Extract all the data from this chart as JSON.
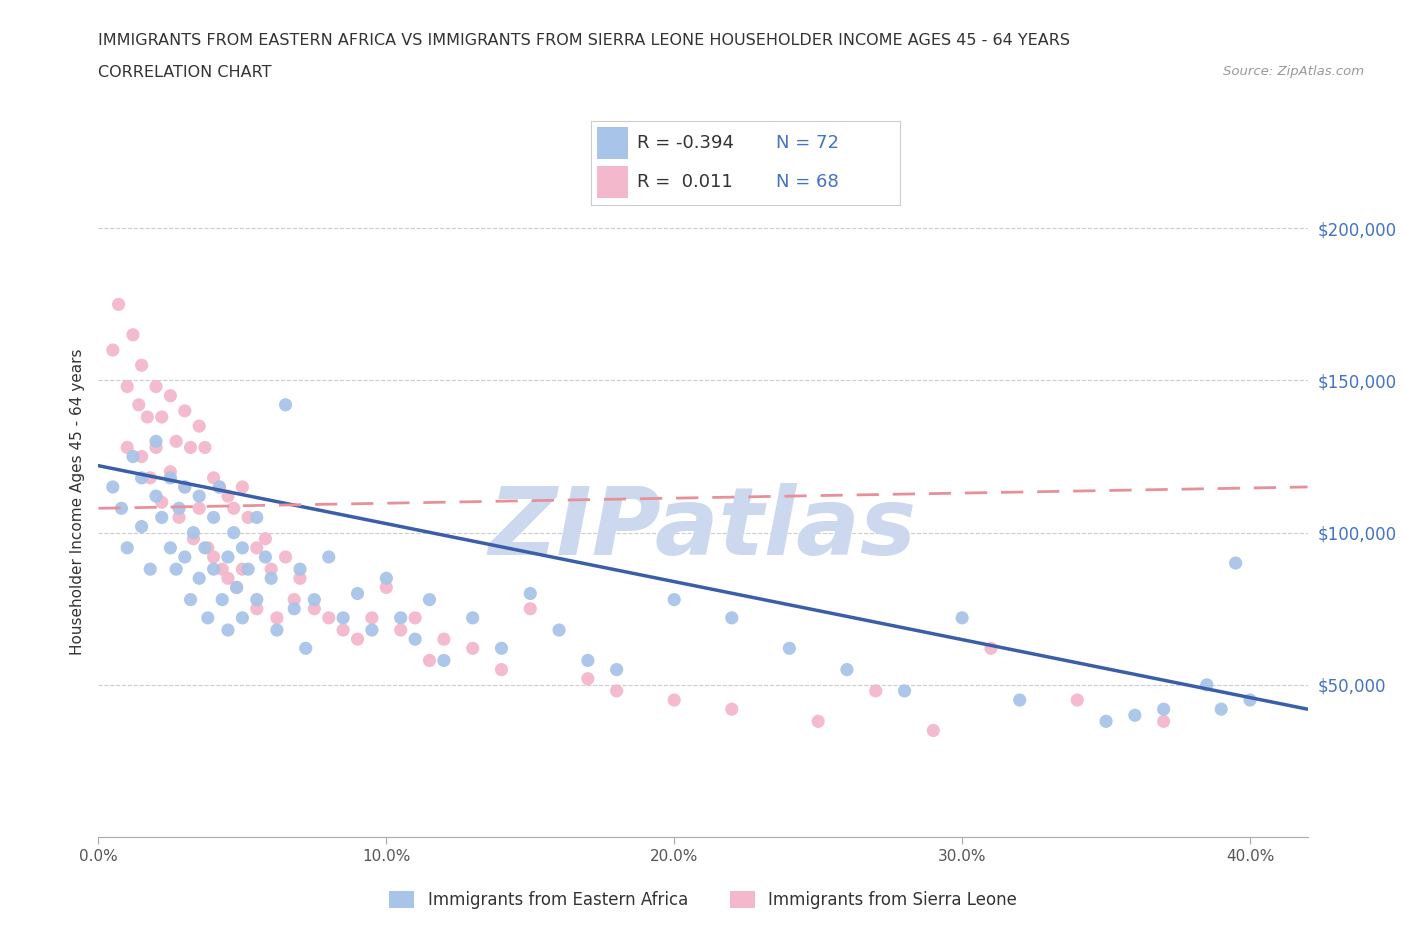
{
  "title_line1": "IMMIGRANTS FROM EASTERN AFRICA VS IMMIGRANTS FROM SIERRA LEONE HOUSEHOLDER INCOME AGES 45 - 64 YEARS",
  "title_line2": "CORRELATION CHART",
  "source_text": "Source: ZipAtlas.com",
  "ylabel": "Householder Income Ages 45 - 64 years",
  "xlim": [
    0.0,
    0.42
  ],
  "ylim": [
    0,
    220000
  ],
  "yticks": [
    0,
    50000,
    100000,
    150000,
    200000
  ],
  "ytick_labels": [
    "",
    "$50,000",
    "$100,000",
    "$150,000",
    "$200,000"
  ],
  "xticks": [
    0.0,
    0.1,
    0.2,
    0.3,
    0.4
  ],
  "xtick_labels": [
    "0.0%",
    "10.0%",
    "20.0%",
    "30.0%",
    "40.0%"
  ],
  "blue_R": -0.394,
  "blue_N": 72,
  "pink_R": 0.011,
  "pink_N": 68,
  "blue_scatter_color": "#a8c4e8",
  "pink_scatter_color": "#f4b8cc",
  "blue_line_color": "#3a5fa8",
  "pink_line_color": "#e8909a",
  "watermark": "ZIPatlas",
  "watermark_color": "#ccd8ee",
  "legend_label_blue": "Immigrants from Eastern Africa",
  "legend_label_pink": "Immigrants from Sierra Leone",
  "blue_scatter_x": [
    0.005,
    0.008,
    0.01,
    0.012,
    0.015,
    0.015,
    0.018,
    0.02,
    0.02,
    0.022,
    0.025,
    0.025,
    0.027,
    0.028,
    0.03,
    0.03,
    0.032,
    0.033,
    0.035,
    0.035,
    0.037,
    0.038,
    0.04,
    0.04,
    0.042,
    0.043,
    0.045,
    0.045,
    0.047,
    0.048,
    0.05,
    0.05,
    0.052,
    0.055,
    0.055,
    0.058,
    0.06,
    0.062,
    0.065,
    0.068,
    0.07,
    0.072,
    0.075,
    0.08,
    0.085,
    0.09,
    0.095,
    0.1,
    0.105,
    0.11,
    0.115,
    0.12,
    0.13,
    0.14,
    0.15,
    0.16,
    0.17,
    0.18,
    0.2,
    0.22,
    0.24,
    0.26,
    0.28,
    0.3,
    0.32,
    0.35,
    0.36,
    0.37,
    0.385,
    0.39,
    0.395,
    0.4
  ],
  "blue_scatter_y": [
    115000,
    108000,
    95000,
    125000,
    118000,
    102000,
    88000,
    112000,
    130000,
    105000,
    95000,
    118000,
    88000,
    108000,
    115000,
    92000,
    78000,
    100000,
    112000,
    85000,
    95000,
    72000,
    105000,
    88000,
    115000,
    78000,
    92000,
    68000,
    100000,
    82000,
    95000,
    72000,
    88000,
    105000,
    78000,
    92000,
    85000,
    68000,
    142000,
    75000,
    88000,
    62000,
    78000,
    92000,
    72000,
    80000,
    68000,
    85000,
    72000,
    65000,
    78000,
    58000,
    72000,
    62000,
    80000,
    68000,
    58000,
    55000,
    78000,
    72000,
    62000,
    55000,
    48000,
    72000,
    45000,
    38000,
    40000,
    42000,
    50000,
    42000,
    90000,
    45000
  ],
  "pink_scatter_x": [
    0.005,
    0.007,
    0.01,
    0.01,
    0.012,
    0.014,
    0.015,
    0.015,
    0.017,
    0.018,
    0.02,
    0.02,
    0.022,
    0.022,
    0.025,
    0.025,
    0.027,
    0.028,
    0.03,
    0.03,
    0.032,
    0.033,
    0.035,
    0.035,
    0.037,
    0.038,
    0.04,
    0.04,
    0.042,
    0.043,
    0.045,
    0.045,
    0.047,
    0.048,
    0.05,
    0.05,
    0.052,
    0.055,
    0.055,
    0.058,
    0.06,
    0.062,
    0.065,
    0.068,
    0.07,
    0.075,
    0.08,
    0.085,
    0.09,
    0.095,
    0.1,
    0.105,
    0.11,
    0.115,
    0.12,
    0.13,
    0.14,
    0.15,
    0.17,
    0.18,
    0.2,
    0.22,
    0.25,
    0.27,
    0.29,
    0.31,
    0.34,
    0.37
  ],
  "pink_scatter_y": [
    160000,
    175000,
    148000,
    128000,
    165000,
    142000,
    155000,
    125000,
    138000,
    118000,
    148000,
    128000,
    138000,
    110000,
    145000,
    120000,
    130000,
    105000,
    140000,
    115000,
    128000,
    98000,
    135000,
    108000,
    128000,
    95000,
    118000,
    92000,
    115000,
    88000,
    112000,
    85000,
    108000,
    82000,
    115000,
    88000,
    105000,
    95000,
    75000,
    98000,
    88000,
    72000,
    92000,
    78000,
    85000,
    75000,
    72000,
    68000,
    65000,
    72000,
    82000,
    68000,
    72000,
    58000,
    65000,
    62000,
    55000,
    75000,
    52000,
    48000,
    45000,
    42000,
    38000,
    48000,
    35000,
    62000,
    45000,
    38000
  ],
  "blue_trend_x": [
    0.0,
    0.42
  ],
  "blue_trend_y": [
    122000,
    42000
  ],
  "pink_trend_x": [
    0.0,
    0.42
  ],
  "pink_trend_y": [
    108000,
    115000
  ]
}
